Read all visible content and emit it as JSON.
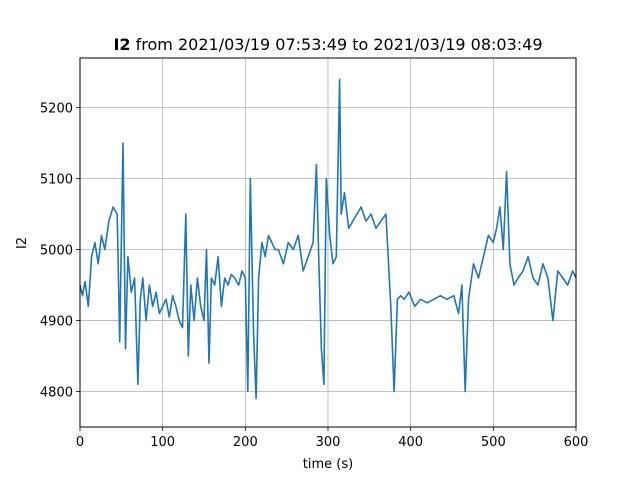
{
  "chart_data": {
    "type": "line",
    "title_bold": "I2",
    "title_rest": " from 2021/03/19 07:53:49 to 2021/03/19 08:03:49",
    "xlabel": "time (s)",
    "ylabel": "I2",
    "xlim": [
      0,
      600
    ],
    "ylim": [
      4750,
      5270
    ],
    "xticks": [
      0,
      100,
      200,
      300,
      400,
      500,
      600
    ],
    "yticks": [
      4800,
      4900,
      5000,
      5100,
      5200
    ],
    "grid": true,
    "series_color": "#1f77b4",
    "series": [
      {
        "x": [
          0,
          3,
          6,
          10,
          14,
          18,
          22,
          26,
          30,
          35,
          40,
          45,
          48,
          52,
          55,
          58,
          62,
          66,
          70,
          73,
          76,
          80,
          84,
          88,
          92,
          96,
          100,
          104,
          108,
          112,
          116,
          120,
          124,
          128,
          131,
          134,
          138,
          142,
          146,
          150,
          153,
          156,
          159,
          163,
          167,
          171,
          175,
          179,
          183,
          187,
          192,
          196,
          200,
          203,
          206,
          210,
          213,
          216,
          220,
          224,
          228,
          232,
          236,
          240,
          246,
          252,
          258,
          264,
          270,
          276,
          282,
          286,
          289,
          292,
          295,
          298,
          302,
          306,
          310,
          314,
          316,
          320,
          325,
          330,
          335,
          340,
          346,
          352,
          358,
          364,
          370,
          376,
          380,
          384,
          388,
          392,
          398,
          405,
          412,
          420,
          428,
          436,
          444,
          452,
          458,
          462,
          466,
          470,
          476,
          482,
          488,
          494,
          500,
          504,
          508,
          512,
          516,
          520,
          525,
          530,
          536,
          542,
          548,
          554,
          560,
          566,
          572,
          578,
          584,
          590,
          596,
          600
        ],
        "y": [
          4950,
          4935,
          4955,
          4920,
          4990,
          5010,
          4980,
          5020,
          5000,
          5040,
          5060,
          5050,
          4870,
          5150,
          4860,
          4990,
          4940,
          4960,
          4810,
          4930,
          4960,
          4900,
          4950,
          4920,
          4940,
          4910,
          4920,
          4930,
          4905,
          4935,
          4920,
          4900,
          4890,
          5050,
          4850,
          4950,
          4900,
          4960,
          4920,
          4900,
          5000,
          4840,
          4960,
          4950,
          4990,
          4920,
          4960,
          4950,
          4965,
          4960,
          4950,
          4970,
          4960,
          4800,
          5100,
          4880,
          4790,
          4960,
          5010,
          4990,
          5020,
          5010,
          5000,
          5000,
          4980,
          5010,
          5000,
          5020,
          4970,
          4990,
          5010,
          5120,
          4980,
          4860,
          4810,
          5100,
          5020,
          4980,
          4990,
          5240,
          5050,
          5080,
          5030,
          5040,
          5050,
          5060,
          5040,
          5050,
          5030,
          5040,
          5050,
          4920,
          4800,
          4930,
          4935,
          4930,
          4940,
          4920,
          4930,
          4925,
          4930,
          4935,
          4930,
          4935,
          4910,
          4950,
          4800,
          4930,
          4980,
          4960,
          4990,
          5020,
          5010,
          5030,
          5060,
          5000,
          5110,
          4980,
          4950,
          4960,
          4970,
          4990,
          4960,
          4950,
          4980,
          4960,
          4900,
          4970,
          4960,
          4950,
          4970,
          4960
        ]
      }
    ]
  }
}
